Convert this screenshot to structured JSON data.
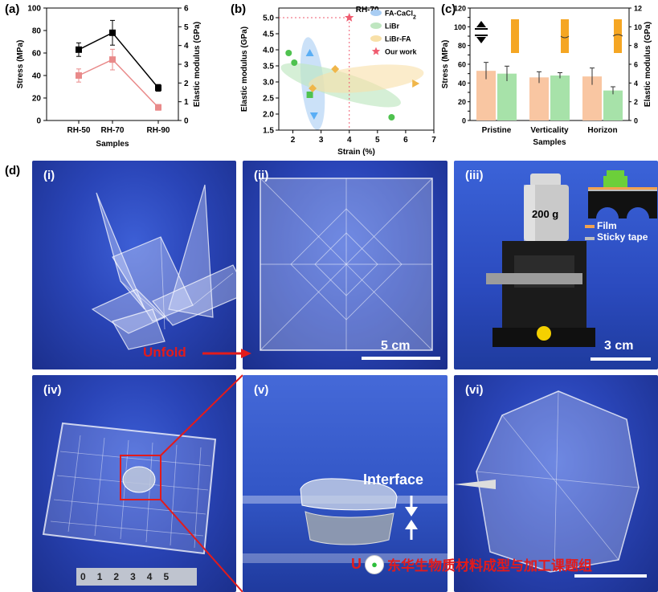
{
  "panel_labels": {
    "a": "(a)",
    "b": "(b)",
    "c": "(c)",
    "d": "(d)"
  },
  "chart_data": [
    {
      "type": "line",
      "panel": "(a)",
      "categories": [
        "RH-50",
        "RH-70",
        "RH-90"
      ],
      "xlabel": "Samples",
      "ylabel": "Stress (MPa)",
      "y2label": "Elastic modulus (GPa)",
      "ylim": [
        0,
        100
      ],
      "y2lim": [
        0,
        6
      ],
      "yticks": [
        "0",
        "20",
        "40",
        "60",
        "80",
        "100"
      ],
      "y2ticks": [
        "0",
        "1",
        "2",
        "3",
        "4",
        "5",
        "6"
      ],
      "series": [
        {
          "axis": "left",
          "color": "#000000",
          "values": [
            63,
            78,
            29
          ],
          "errors": [
            6,
            11,
            3
          ]
        },
        {
          "axis": "right",
          "color": "#e98a8a",
          "values": [
            2.4,
            3.25,
            0.7
          ],
          "errors": [
            0.35,
            0.55,
            0.15
          ]
        }
      ]
    },
    {
      "type": "scatter",
      "panel": "(b)",
      "xlabel": "Strain (%)",
      "ylabel": "Elastic modulus (GPa)",
      "xlim": [
        1.5,
        7
      ],
      "ylim": [
        1.5,
        5.3
      ],
      "xticks": [
        "2",
        "3",
        "4",
        "5",
        "6",
        "7"
      ],
      "yticks": [
        "1.5",
        "2.0",
        "2.5",
        "3.0",
        "3.5",
        "4.0",
        "4.5",
        "5.0"
      ],
      "annotation": "RH-70",
      "legend": [
        {
          "name": "FA-CaCl2",
          "color": "#a9cdf3"
        },
        {
          "name": "LiBr",
          "color": "#bfe6c0"
        },
        {
          "name": "LiBr-FA",
          "color": "#f8e0a8"
        },
        {
          "name": "Our work",
          "color": "#ef5b6f"
        }
      ],
      "legend_texts": {
        "fa_main": "FA-CaCl",
        "fa_sub": "2",
        "libr": "LiBr",
        "librfa": "LiBr-FA",
        "ours": "Our work"
      },
      "points": [
        {
          "group": "FA-CaCl2",
          "x": 2.6,
          "y": 3.9,
          "shape": "triangle-up",
          "color": "#5aaef5"
        },
        {
          "group": "FA-CaCl2",
          "x": 2.75,
          "y": 1.95,
          "shape": "triangle-down",
          "color": "#5aaef5"
        },
        {
          "group": "LiBr",
          "x": 1.85,
          "y": 3.9,
          "shape": "circle",
          "color": "#4fc24f"
        },
        {
          "group": "LiBr",
          "x": 2.05,
          "y": 3.6,
          "shape": "circle",
          "color": "#4fc24f"
        },
        {
          "group": "LiBr",
          "x": 2.6,
          "y": 2.6,
          "shape": "square",
          "color": "#4fc24f"
        },
        {
          "group": "LiBr",
          "x": 5.5,
          "y": 1.9,
          "shape": "circle",
          "color": "#4fc24f"
        },
        {
          "group": "LiBr-FA",
          "x": 2.7,
          "y": 2.8,
          "shape": "diamond",
          "color": "#f0b64a"
        },
        {
          "group": "LiBr-FA",
          "x": 3.5,
          "y": 3.4,
          "shape": "diamond",
          "color": "#f0b64a"
        },
        {
          "group": "LiBr-FA",
          "x": 6.35,
          "y": 2.95,
          "shape": "triangle-right",
          "color": "#f0b64a"
        },
        {
          "group": "Our work",
          "x": 4.0,
          "y": 5.0,
          "shape": "star",
          "color": "#ef5b6f"
        }
      ]
    },
    {
      "type": "bar",
      "panel": "(c)",
      "categories": [
        "Pristine",
        "Verticality",
        "Horizon"
      ],
      "xlabel": "Samples",
      "ylabel": "Stress (MPa)",
      "y2label": "Elastic modulus (GPa)",
      "ylim": [
        0,
        120
      ],
      "y2lim": [
        0,
        12
      ],
      "yticks": [
        "0",
        "10",
        "20",
        "30",
        "40",
        "50",
        "60",
        "70",
        "80",
        "90",
        "100",
        "110",
        "120"
      ],
      "y2ticks": [
        "0",
        "2",
        "4",
        "6",
        "8",
        "10",
        "12"
      ],
      "series": [
        {
          "axis": "left",
          "color": "#f9c6a2",
          "values": [
            53,
            46,
            47
          ],
          "errors": [
            9,
            6,
            9
          ]
        },
        {
          "axis": "right",
          "color": "#a7e2a9",
          "values": [
            5.0,
            4.8,
            3.2
          ],
          "errors": [
            0.8,
            0.3,
            0.4
          ]
        }
      ]
    }
  ],
  "photos": {
    "i": "(i)",
    "ii": "(ii)",
    "iii": "(iii)",
    "iv": "(iv)",
    "v": "(v)",
    "vi": "(vi)",
    "unfold": "Unfold",
    "scale_ii": "5 cm",
    "scale_iii": "3 cm",
    "weight": "200 g",
    "legend_film": "Film",
    "legend_tape": "Sticky tape",
    "interface": "Interface",
    "ruler_digits": [
      "0",
      "1",
      "2",
      "3",
      "4",
      "5"
    ],
    "watermark": "东华生物质材料成型与加工课题组",
    "watermark_prefix": "U"
  },
  "colors": {
    "film": "#f2a24f",
    "tape": "#bdbdbd",
    "red": "#e31b1b"
  }
}
